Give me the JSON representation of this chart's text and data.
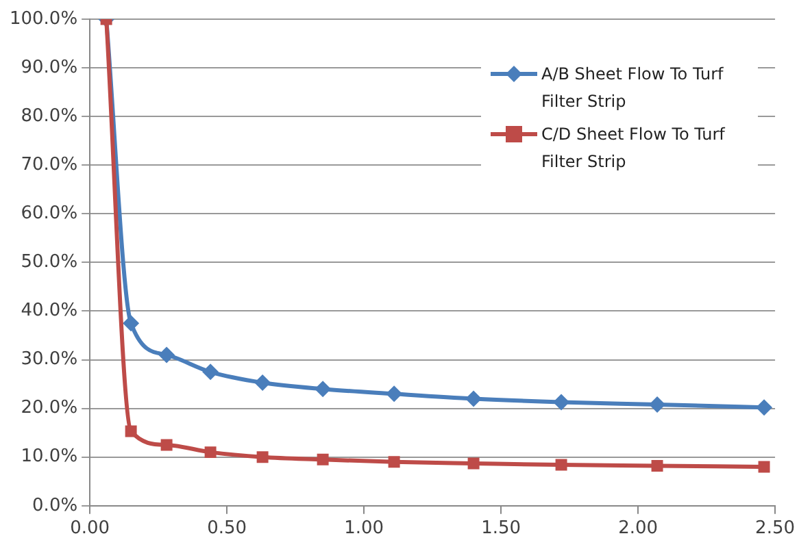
{
  "chart_data": {
    "type": "line",
    "x": [
      0.06,
      0.15,
      0.28,
      0.44,
      0.63,
      0.85,
      1.11,
      1.4,
      1.72,
      2.07,
      2.46
    ],
    "series": [
      {
        "name": "A/B Sheet Flow To Turf Filter Strip",
        "color": "#4a7ebb",
        "marker": "diamond",
        "values": [
          100,
          37.5,
          31,
          27.5,
          25.3,
          24,
          23,
          22,
          21.3,
          20.8,
          20.2
        ]
      },
      {
        "name": "C/D Sheet Flow To Turf Filter Strip",
        "color": "#be4b48",
        "marker": "square",
        "values": [
          100,
          15.3,
          12.5,
          11,
          10,
          9.5,
          9,
          8.7,
          8.4,
          8.2,
          8.0
        ]
      }
    ],
    "xlim": [
      0,
      2.5
    ],
    "xticks": [
      {
        "value": 0,
        "label": "0.00"
      },
      {
        "value": 0.5,
        "label": "0.50"
      },
      {
        "value": 1,
        "label": "1.00"
      },
      {
        "value": 1.5,
        "label": "1.50"
      },
      {
        "value": 2,
        "label": "2.00"
      },
      {
        "value": 2.5,
        "label": "2.50"
      }
    ],
    "ylim": [
      0,
      100
    ],
    "yticks": [
      {
        "value": 0,
        "label": "0.0%"
      },
      {
        "value": 10,
        "label": "10.0%"
      },
      {
        "value": 20,
        "label": "20.0%"
      },
      {
        "value": 30,
        "label": "30.0%"
      },
      {
        "value": 40,
        "label": "40.0%"
      },
      {
        "value": 50,
        "label": "50.0%"
      },
      {
        "value": 60,
        "label": "60.0%"
      },
      {
        "value": 70,
        "label": "70.0%"
      },
      {
        "value": 80,
        "label": "80.0%"
      },
      {
        "value": 90,
        "label": "90.0%"
      },
      {
        "value": 100,
        "label": "100.0%"
      }
    ],
    "grid": "y",
    "legend": "top right",
    "line_style": "solid"
  }
}
